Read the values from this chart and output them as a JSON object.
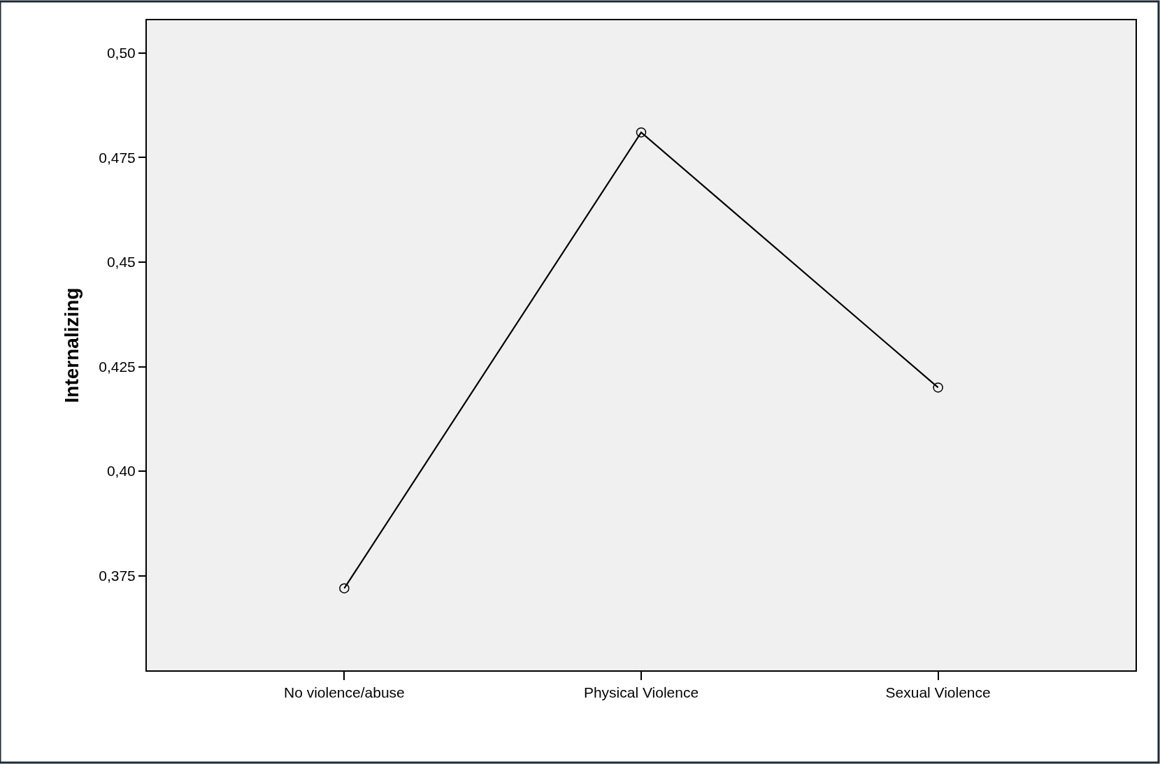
{
  "chart_data": {
    "type": "line",
    "ylabel": "Internalizing",
    "categories": [
      "No violence/abuse",
      "Physical Violence",
      "Sexual Violence"
    ],
    "series": [
      {
        "color": "#000000",
        "values": [
          0.372,
          0.481,
          0.42
        ]
      }
    ],
    "ylim": [
      0.3524,
      0.5078
    ],
    "yticks": [
      {
        "value": 0.375,
        "label": "0,375"
      },
      {
        "value": 0.4,
        "label": "0,40"
      },
      {
        "value": 0.425,
        "label": "0,425"
      },
      {
        "value": 0.45,
        "label": "0,45"
      },
      {
        "value": 0.475,
        "label": "0,475"
      },
      {
        "value": 0.5,
        "label": "0,50"
      }
    ],
    "marker": "circle",
    "line_style": "solid",
    "grid": false
  }
}
